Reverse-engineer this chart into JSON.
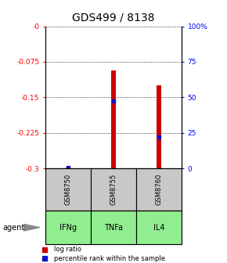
{
  "title": "GDS499 / 8138",
  "samples": [
    "GSM8750",
    "GSM8755",
    "GSM8760"
  ],
  "agents": [
    "IFNg",
    "TNFa",
    "IL4"
  ],
  "bar_bottoms": [
    -0.3,
    -0.3,
    -0.3
  ],
  "bar_tops": [
    -0.299,
    -0.093,
    -0.125
  ],
  "bar_color": "#cc0000",
  "blue_marker_values": [
    -0.299,
    -0.158,
    -0.233
  ],
  "blue_marker_color": "#1111cc",
  "ylim_left": [
    -0.3,
    0.0
  ],
  "ylim_right": [
    0,
    100
  ],
  "yticks_left": [
    -0.3,
    -0.225,
    -0.15,
    -0.075,
    0.0
  ],
  "ytick_labels_left": [
    "-0.3",
    "-0.225",
    "-0.15",
    "-0.075",
    "-0"
  ],
  "yticks_right": [
    0,
    25,
    50,
    75,
    100
  ],
  "ytick_labels_right": [
    "0",
    "25",
    "50",
    "75",
    "100%"
  ],
  "gray_box_color": "#c8c8c8",
  "green_box_color": "#90ee90",
  "legend_red_label": "log ratio",
  "legend_blue_label": "percentile rank within the sample",
  "agent_label": "agent",
  "bar_width": 0.12
}
